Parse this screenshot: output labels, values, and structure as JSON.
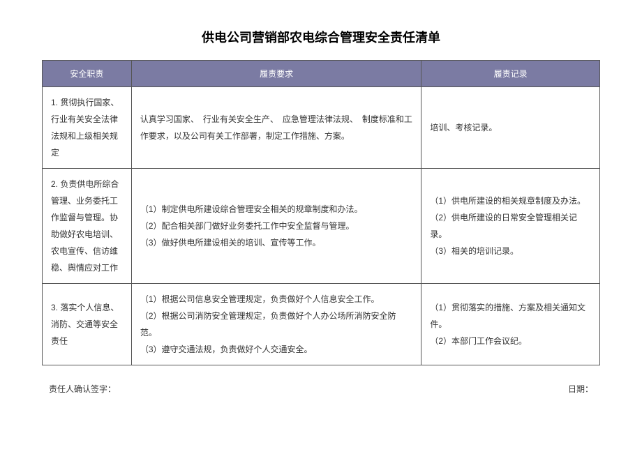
{
  "title": "供电公司营销部农电综合管理安全责任清单",
  "table": {
    "headers": {
      "col1": "安全职责",
      "col2": "履责要求",
      "col3": "履责记录"
    },
    "rows": [
      {
        "duty": "1. 贯彻执行国家、行业有关安全法律法规和上级相关规定",
        "requirement": "认真学习国家、　行业有关安全生产、　应急管理法律法规、　制度标准和工作要求，以及公司有关工作部署，制定工作措施、方案。",
        "record": "培训、考核记录。"
      },
      {
        "duty": "2. 负责供电所综合管理、业务委托工作监督与管理。协助做好农电培训、农电宣传、信访维稳、舆情应对工作",
        "requirement": "（1）制定供电所建设综合管理安全相关的规章制度和办法。\n（2）配合相关部门做好业务委托工作中安全监督与管理。\n（3）做好供电所建设相关的培训、宣传等工作。",
        "record": "（1）供电所建设的相关规章制度及办法。\n（2）供电所建设的日常安全管理相关记录。\n（3）相关的培训记录。"
      },
      {
        "duty": "3. 落实个人信息、消防、交通等安全责任",
        "requirement": "（1）根据公司信息安全管理规定，负责做好个人信息安全工作。\n（2）根据公司消防安全管理规定，负责做好个人办公场所消防安全防范。\n（3）遵守交通法规，负责做好个人交通安全。",
        "record": "（1）贯彻落实的措施、方案及相关通知文件。\n（2）本部门工作会议纪。"
      }
    ]
  },
  "footer": {
    "signature_label": "责任人确认签字：",
    "date_label": "日期："
  },
  "colors": {
    "header_bg": "#7b7ba3",
    "header_text": "#ffffff",
    "border": "#555555",
    "body_text": "#333333",
    "background": "#ffffff"
  }
}
